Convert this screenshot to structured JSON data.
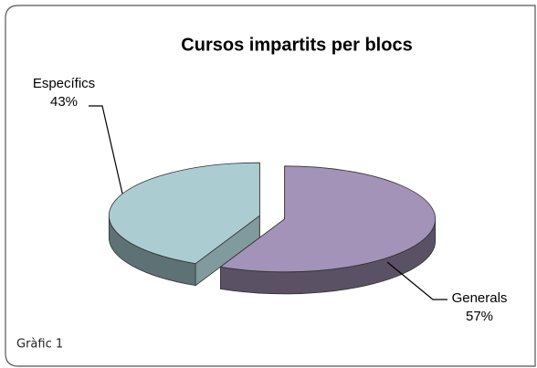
{
  "chart_data": {
    "type": "pie",
    "title": "Cursos impartits per blocs",
    "categories": [
      "Generals",
      "Específics"
    ],
    "values": [
      57,
      43
    ],
    "value_labels": [
      "57%",
      "43%"
    ],
    "colors": [
      "#a393b8",
      "#abcdd2"
    ],
    "caption": "Gràfic 1"
  }
}
